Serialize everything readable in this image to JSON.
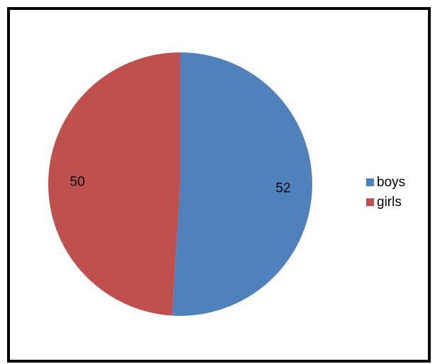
{
  "chart_data": {
    "type": "pie",
    "categories": [
      "boys",
      "girls"
    ],
    "values": [
      52,
      50
    ],
    "colors": [
      "#4F81BD",
      "#C0504D"
    ],
    "data_labels": [
      "52",
      "50"
    ],
    "start_angle_deg": 0,
    "direction": "clockwise",
    "legend_position": "right"
  }
}
